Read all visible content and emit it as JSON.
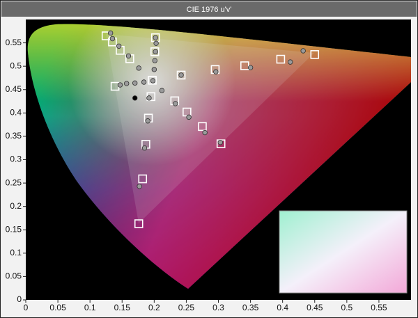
{
  "chart_data": {
    "type": "scatter",
    "title": "CIE 1976 u'v'",
    "xlim": [
      0,
      0.6
    ],
    "ylim": [
      0,
      0.6
    ],
    "xticks": [
      0,
      0.05,
      0.1,
      0.15,
      0.2,
      0.25,
      0.3,
      0.35,
      0.4,
      0.45,
      0.5,
      0.55
    ],
    "yticks": [
      0,
      0.05,
      0.1,
      0.15,
      0.2,
      0.25,
      0.3,
      0.35,
      0.4,
      0.45,
      0.5,
      0.55
    ],
    "series": [
      {
        "marker": "square",
        "color": "#ffffff",
        "x": [
          0.125,
          0.135,
          0.147,
          0.162,
          0.202,
          0.201,
          0.197,
          0.242,
          0.295,
          0.341,
          0.397,
          0.45,
          0.139,
          0.195,
          0.191,
          0.187,
          0.182,
          0.176,
          0.232,
          0.251,
          0.275,
          0.304
        ],
        "values": [
          0.565,
          0.552,
          0.534,
          0.516,
          0.561,
          0.531,
          0.47,
          0.481,
          0.493,
          0.501,
          0.515,
          0.525,
          0.457,
          0.435,
          0.389,
          0.333,
          0.259,
          0.163,
          0.426,
          0.402,
          0.371,
          0.334
        ]
      },
      {
        "marker": "circle",
        "color": "#9a9a9a",
        "x": [
          0.132,
          0.135,
          0.145,
          0.16,
          0.176,
          0.202,
          0.203,
          0.202,
          0.201,
          0.2,
          0.198,
          0.242,
          0.296,
          0.35,
          0.412,
          0.432,
          0.147,
          0.157,
          0.17,
          0.184,
          0.192,
          0.212,
          0.233,
          0.254,
          0.279,
          0.303,
          0.19,
          0.185,
          0.177
        ],
        "values": [
          0.571,
          0.559,
          0.543,
          0.522,
          0.496,
          0.561,
          0.549,
          0.531,
          0.512,
          0.493,
          0.469,
          0.481,
          0.488,
          0.497,
          0.509,
          0.533,
          0.46,
          0.463,
          0.464,
          0.466,
          0.432,
          0.448,
          0.42,
          0.391,
          0.358,
          0.337,
          0.383,
          0.325,
          0.243
        ]
      },
      {
        "marker": "circle",
        "color": "#000000",
        "x": [
          0.17
        ],
        "values": [
          0.432
        ]
      }
    ]
  }
}
